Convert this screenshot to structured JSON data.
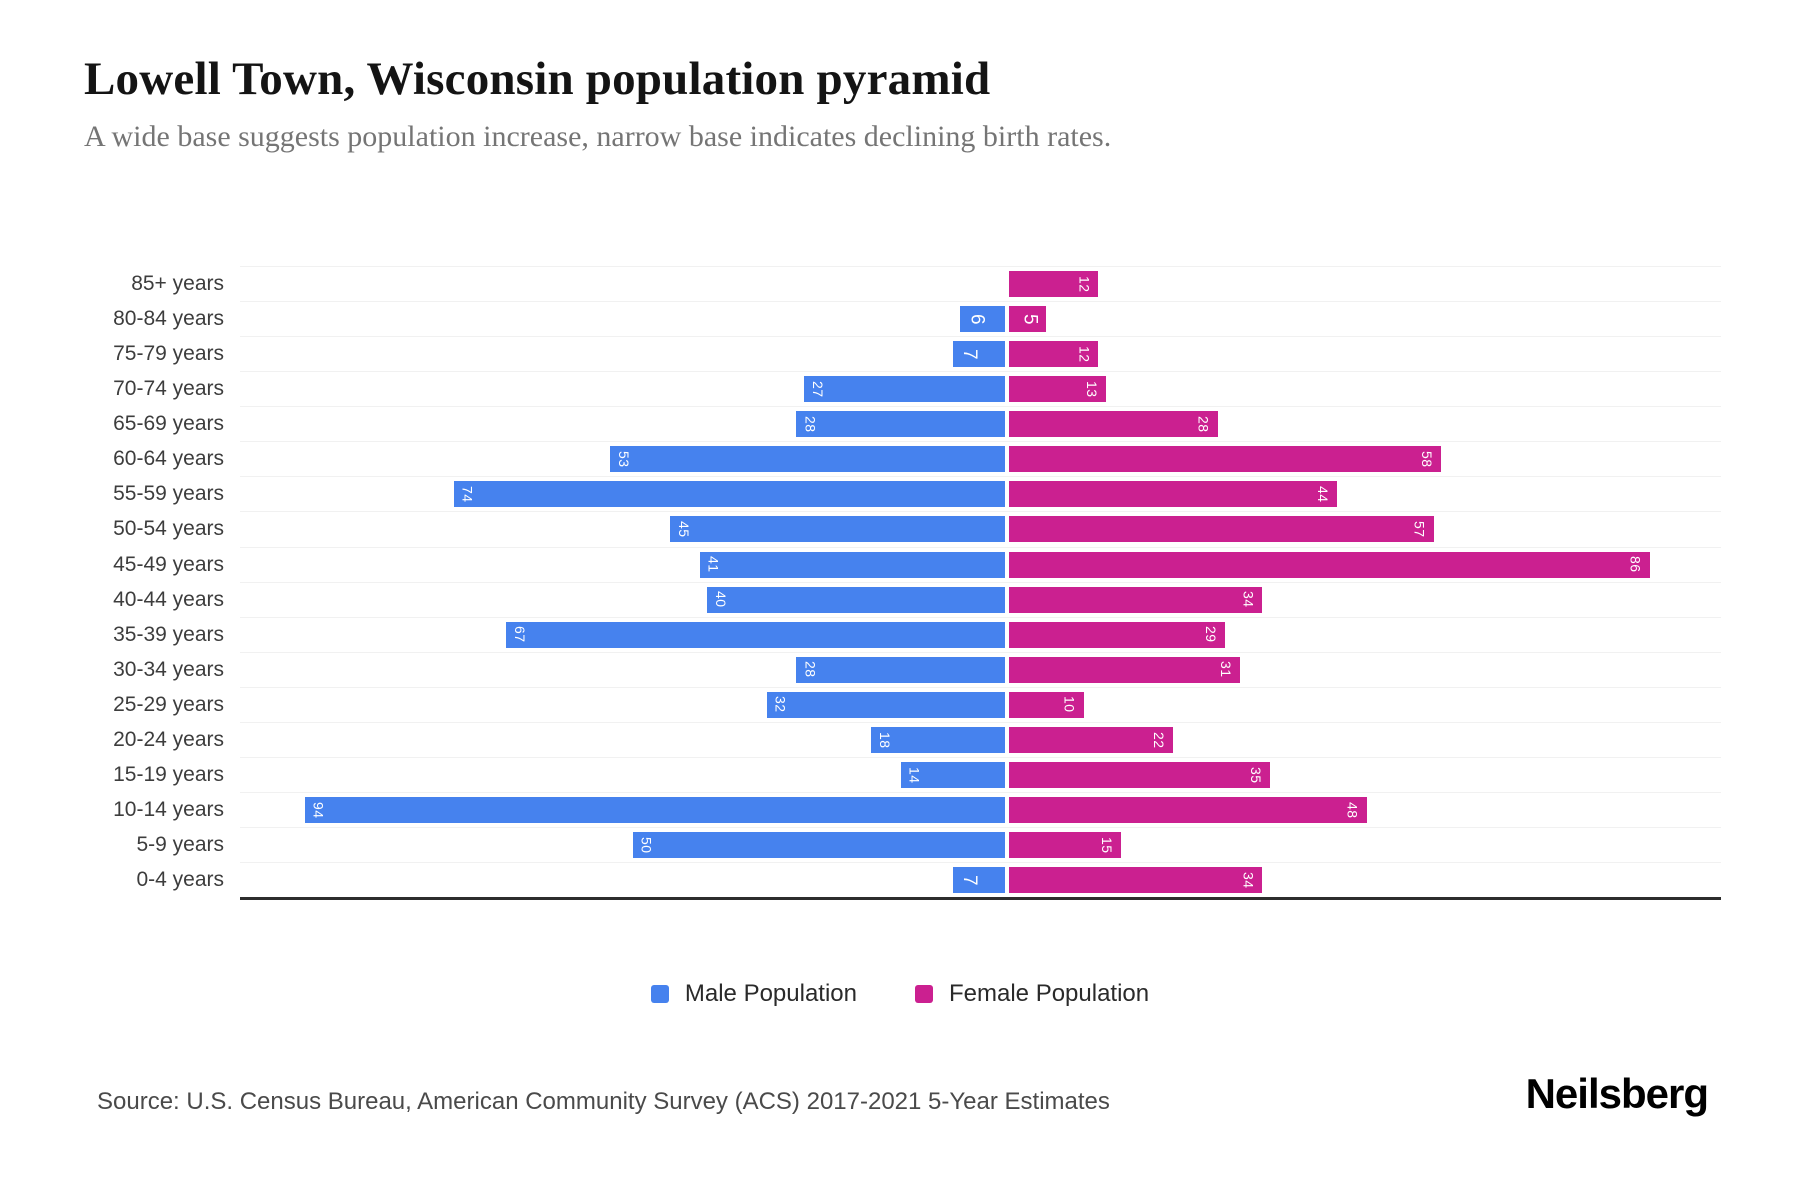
{
  "header": {
    "title": "Lowell Town, Wisconsin population pyramid",
    "subtitle": "A wide base suggests population increase, narrow base indicates declining birth rates."
  },
  "chart_data": {
    "type": "bar",
    "variant": "population-pyramid",
    "title": "Lowell Town, Wisconsin population pyramid",
    "categories": [
      "85+ years",
      "80-84 years",
      "75-79 years",
      "70-74 years",
      "65-69 years",
      "60-64 years",
      "55-59 years",
      "50-54 years",
      "45-49 years",
      "40-44 years",
      "35-39 years",
      "30-34 years",
      "25-29 years",
      "20-24 years",
      "15-19 years",
      "10-14 years",
      "5-9 years",
      "0-4 years"
    ],
    "series": [
      {
        "name": "Male Population",
        "side": "left",
        "color": "#4682ee",
        "values": [
          0,
          6,
          7,
          27,
          28,
          53,
          74,
          45,
          41,
          40,
          67,
          28,
          32,
          18,
          14,
          94,
          50,
          7
        ]
      },
      {
        "name": "Female Population",
        "side": "right",
        "color": "#cb2090",
        "values": [
          12,
          5,
          12,
          13,
          28,
          58,
          44,
          57,
          86,
          34,
          29,
          31,
          10,
          22,
          35,
          48,
          15,
          34
        ]
      }
    ],
    "xlim": [
      -103,
      96
    ],
    "grid": true,
    "gridline_color": "#f1f1f1",
    "bar_label_color": "#ffffff",
    "legend_position": "bottom"
  },
  "legend": {
    "items": [
      {
        "label": "Male Population",
        "color": "#4682ee"
      },
      {
        "label": "Female Population",
        "color": "#cb2090"
      }
    ]
  },
  "footer": {
    "source": "Source: U.S. Census Bureau, American Community Survey (ACS) 2017-2021 5-Year Estimates",
    "brand": "Neilsberg"
  }
}
